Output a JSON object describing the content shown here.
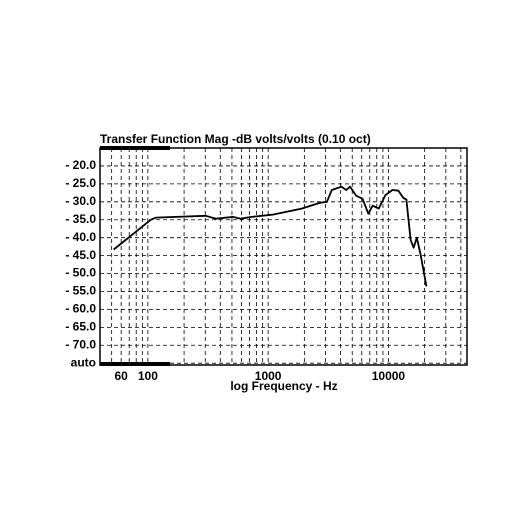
{
  "chart_data": {
    "type": "line",
    "title": "Transfer Function Mag -dB volts/volts (0.10 oct)",
    "x_label": "log Frequency - Hz",
    "x_scale": "log",
    "x": [
      52,
      106,
      117,
      300,
      370,
      510,
      590,
      730,
      1080,
      1900,
      2680,
      3080,
      3380,
      4070,
      4460,
      4800,
      5400,
      6100,
      6800,
      7400,
      8300,
      9450,
      10800,
      12100,
      13300,
      14100,
      15300,
      16200,
      17200,
      18500,
      20700
    ],
    "series": [
      {
        "color": "#000000",
        "values": [
          -43.3,
          -35.0,
          -34.4,
          -33.9,
          -34.7,
          -34.2,
          -34.7,
          -34.2,
          -33.6,
          -31.9,
          -30.3,
          -30.0,
          -26.7,
          -25.8,
          -26.7,
          -25.8,
          -28.3,
          -29.2,
          -33.3,
          -31.1,
          -31.9,
          -28.1,
          -26.7,
          -26.9,
          -28.9,
          -29.4,
          -40.6,
          -42.8,
          -40.0,
          -44.7,
          -53.6
        ]
      }
    ],
    "xlim": [
      40,
      45000
    ],
    "xticks": [
      60,
      100,
      1000,
      10000
    ],
    "ylim": [
      -75.5,
      -15
    ],
    "yticks": [
      {
        "value": -20,
        "label": "- 20.0"
      },
      {
        "value": -25,
        "label": "- 25.0"
      },
      {
        "value": -30,
        "label": "- 30.0"
      },
      {
        "value": -35,
        "label": "- 35.0"
      },
      {
        "value": -40,
        "label": "- 40.0"
      },
      {
        "value": -45,
        "label": "- 45.0"
      },
      {
        "value": -50,
        "label": "- 50.0"
      },
      {
        "value": -55,
        "label": "- 55.0"
      },
      {
        "value": -60,
        "label": "- 60.0"
      },
      {
        "value": -65,
        "label": "- 65.0"
      },
      {
        "value": -70,
        "label": "- 70.0"
      },
      {
        "value": -75,
        "label": "auto"
      }
    ],
    "grid": true
  }
}
